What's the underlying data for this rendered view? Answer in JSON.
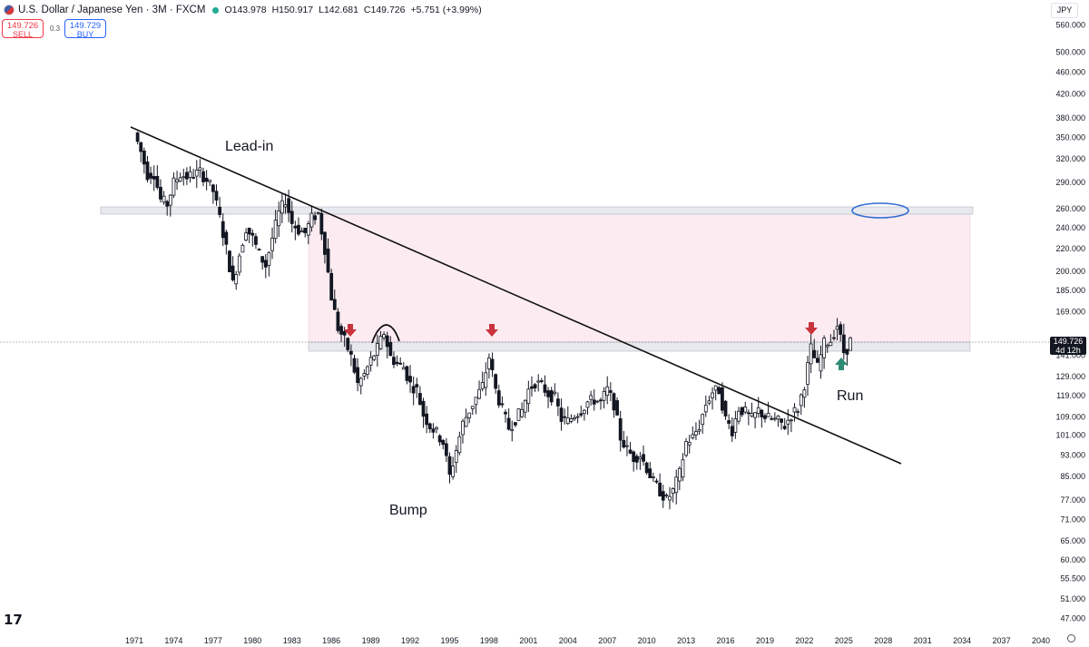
{
  "header": {
    "title": "U.S. Dollar / Japanese Yen · 3M · FXCM",
    "ohlc": {
      "open": "O143.978",
      "high": "H150.917",
      "low": "L142.681",
      "close": "C149.726",
      "change": "+5.751 (+3.99%)"
    }
  },
  "trade": {
    "sell_price": "149.726",
    "sell_label": "SELL",
    "spread": "0.3",
    "buy_price": "149.729",
    "buy_label": "BUY"
  },
  "currency_label": "JPY",
  "last_price_tag": {
    "price": "149.726",
    "countdown": "4d 12h"
  },
  "colors": {
    "up_wick": "#131722",
    "resistance_zone": "#fcecf1",
    "band_fill": "#e8e9ee",
    "marker_red": "#c9333c",
    "marker_green": "#2e8b76",
    "ellipse": "#2e6bd3"
  },
  "chart_data": {
    "type": "candlestick",
    "symbol": "USDJPY",
    "timeframe": "3M",
    "y_scale": "log",
    "y_ticks": [
      "560.000",
      "500.000",
      "460.000",
      "420.000",
      "380.000",
      "350.000",
      "320.000",
      "290.000",
      "260.000",
      "240.000",
      "220.000",
      "200.000",
      "185.000",
      "169.000",
      "141.000",
      "129.000",
      "119.000",
      "109.000",
      "101.000",
      "93.000",
      "85.000",
      "77.000",
      "71.000",
      "65.000",
      "60.000",
      "55.500",
      "51.000",
      "47.000"
    ],
    "x_ticks": [
      "1971",
      "1974",
      "1977",
      "1980",
      "1983",
      "1986",
      "1989",
      "1992",
      "1995",
      "1998",
      "2001",
      "2004",
      "2007",
      "2010",
      "2013",
      "2016",
      "2019",
      "2022",
      "2025",
      "2028",
      "2031",
      "2034",
      "2037",
      "2040"
    ],
    "last_price": 149.726,
    "price_path": [
      [
        1971.0,
        357
      ],
      [
        1971.5,
        330
      ],
      [
        1972.0,
        300
      ],
      [
        1972.5,
        301
      ],
      [
        1973.0,
        270
      ],
      [
        1973.5,
        265
      ],
      [
        1974.0,
        290
      ],
      [
        1974.5,
        300
      ],
      [
        1975.0,
        297
      ],
      [
        1975.5,
        300
      ],
      [
        1976.0,
        303
      ],
      [
        1976.5,
        293
      ],
      [
        1977.0,
        280
      ],
      [
        1977.5,
        250
      ],
      [
        1978.0,
        220
      ],
      [
        1978.5,
        190
      ],
      [
        1979.0,
        215
      ],
      [
        1979.5,
        240
      ],
      [
        1980.0,
        230
      ],
      [
        1980.5,
        215
      ],
      [
        1981.0,
        205
      ],
      [
        1981.5,
        230
      ],
      [
        1982.0,
        255
      ],
      [
        1982.5,
        270
      ],
      [
        1983.0,
        245
      ],
      [
        1983.5,
        238
      ],
      [
        1984.0,
        235
      ],
      [
        1984.5,
        250
      ],
      [
        1985.0,
        255
      ],
      [
        1985.5,
        220
      ],
      [
        1986.0,
        180
      ],
      [
        1986.5,
        158
      ],
      [
        1987.0,
        150
      ],
      [
        1987.5,
        140
      ],
      [
        1988.0,
        125
      ],
      [
        1988.5,
        130
      ],
      [
        1989.0,
        138
      ],
      [
        1989.5,
        145
      ],
      [
        1990.0,
        155
      ],
      [
        1990.5,
        140
      ],
      [
        1991.0,
        136
      ],
      [
        1991.5,
        134
      ],
      [
        1992.0,
        125
      ],
      [
        1992.5,
        122
      ],
      [
        1993.0,
        110
      ],
      [
        1993.5,
        105
      ],
      [
        1994.0,
        102
      ],
      [
        1994.5,
        98
      ],
      [
        1995.0,
        85
      ],
      [
        1995.5,
        95
      ],
      [
        1996.0,
        106
      ],
      [
        1996.5,
        112
      ],
      [
        1997.0,
        118
      ],
      [
        1997.5,
        124
      ],
      [
        1998.0,
        140
      ],
      [
        1998.5,
        122
      ],
      [
        1999.0,
        112
      ],
      [
        1999.5,
        104
      ],
      [
        2000.0,
        108
      ],
      [
        2000.5,
        112
      ],
      [
        2001.0,
        122
      ],
      [
        2001.5,
        126
      ],
      [
        2002.0,
        124
      ],
      [
        2002.5,
        120
      ],
      [
        2003.0,
        118
      ],
      [
        2003.5,
        108
      ],
      [
        2004.0,
        107
      ],
      [
        2004.5,
        110
      ],
      [
        2005.0,
        112
      ],
      [
        2005.5,
        116
      ],
      [
        2006.0,
        117
      ],
      [
        2006.5,
        116
      ],
      [
        2007.0,
        122
      ],
      [
        2007.5,
        115
      ],
      [
        2008.0,
        100
      ],
      [
        2008.5,
        95
      ],
      [
        2009.0,
        92
      ],
      [
        2009.5,
        93
      ],
      [
        2010.0,
        88
      ],
      [
        2010.5,
        83
      ],
      [
        2011.0,
        80
      ],
      [
        2011.5,
        77
      ],
      [
        2012.0,
        80
      ],
      [
        2012.5,
        86
      ],
      [
        2013.0,
        98
      ],
      [
        2013.5,
        100
      ],
      [
        2014.0,
        105
      ],
      [
        2014.5,
        115
      ],
      [
        2015.0,
        121
      ],
      [
        2015.5,
        122
      ],
      [
        2016.0,
        108
      ],
      [
        2016.5,
        103
      ],
      [
        2017.0,
        113
      ],
      [
        2017.5,
        111
      ],
      [
        2018.0,
        108
      ],
      [
        2018.5,
        112
      ],
      [
        2019.0,
        109
      ],
      [
        2019.5,
        108
      ],
      [
        2020.0,
        107
      ],
      [
        2020.5,
        105
      ],
      [
        2021.0,
        110
      ],
      [
        2021.5,
        113
      ],
      [
        2022.0,
        125
      ],
      [
        2022.5,
        145
      ],
      [
        2023.0,
        134
      ],
      [
        2023.5,
        148
      ],
      [
        2024.0,
        150
      ],
      [
        2024.5,
        160
      ],
      [
        2025.0,
        143
      ],
      [
        2025.5,
        147
      ]
    ],
    "annotations": [
      "Lead-in",
      "Bump",
      "Run"
    ]
  }
}
